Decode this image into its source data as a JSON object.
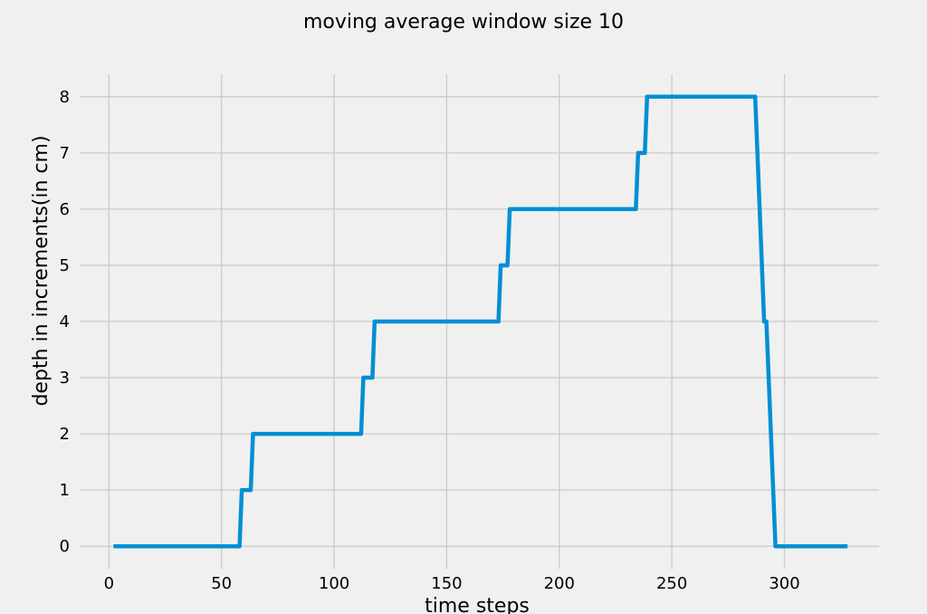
{
  "chart_data": {
    "type": "line",
    "title": "moving average window size 10",
    "xlabel": "time steps",
    "ylabel": "depth in increments(in cm)",
    "xlim": [
      -13,
      342
    ],
    "ylim": [
      -0.4,
      8.4
    ],
    "xticks": [
      0,
      50,
      100,
      150,
      200,
      250,
      300
    ],
    "yticks": [
      0,
      1,
      2,
      3,
      4,
      5,
      6,
      7,
      8
    ],
    "grid": true,
    "line_color": "#008fd5",
    "background": "#f0f0f0",
    "series": [
      {
        "x": [
          2,
          58,
          59,
          63,
          64,
          112,
          113,
          117,
          118,
          173,
          174,
          177,
          178,
          234,
          235,
          238,
          239,
          287,
          291,
          292,
          296,
          328
        ],
        "y": [
          0,
          0,
          1,
          1,
          2,
          2,
          3,
          3,
          4,
          4,
          5,
          5,
          6,
          6,
          7,
          7,
          8,
          8,
          4,
          4,
          0,
          0
        ]
      }
    ]
  }
}
